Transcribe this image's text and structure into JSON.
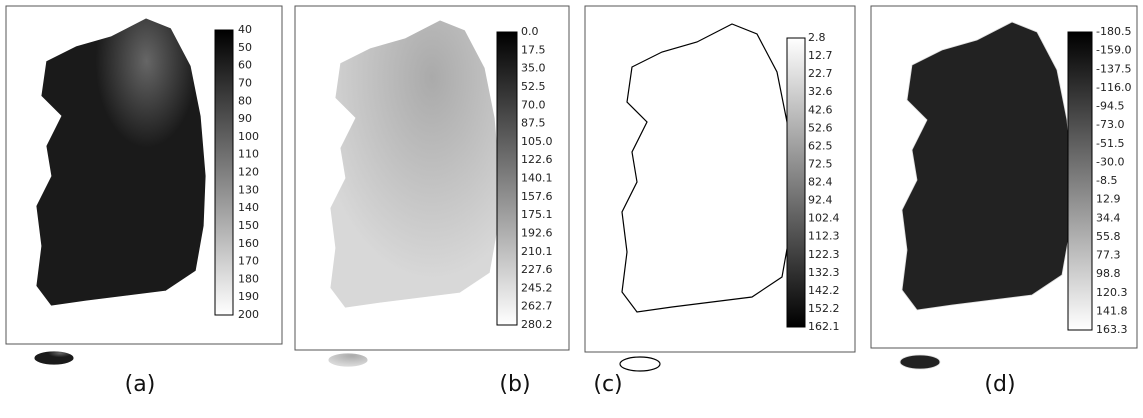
{
  "panels": [
    {
      "caption": "(a)",
      "legend": [
        "40",
        "50",
        "60",
        "70",
        "80",
        "90",
        "100",
        "110",
        "120",
        "130",
        "140",
        "150",
        "160",
        "170",
        "180",
        "190",
        "200"
      ]
    },
    {
      "caption": "(b)",
      "legend": [
        "0.0",
        "17.5",
        "35.0",
        "52.5",
        "70.0",
        "87.5",
        "105.0",
        "122.6",
        "140.1",
        "157.6",
        "175.1",
        "192.6",
        "210.1",
        "227.6",
        "245.2",
        "262.7",
        "280.2"
      ]
    },
    {
      "caption": "(c)",
      "legend": [
        "2.8",
        "12.7",
        "22.7",
        "32.6",
        "42.6",
        "52.6",
        "62.5",
        "72.5",
        "82.4",
        "92.4",
        "102.4",
        "112.3",
        "122.3",
        "132.3",
        "142.2",
        "152.2",
        "162.1"
      ]
    },
    {
      "caption": "(d)",
      "legend": [
        "-180.5",
        "-159.0",
        "-137.5",
        "-116.0",
        "-94.5",
        "-73.0",
        "-51.5",
        "-30.0",
        "-8.5",
        "12.9",
        "34.4",
        "55.8",
        "77.3",
        "98.8",
        "120.3",
        "141.8",
        "163.3"
      ]
    }
  ]
}
